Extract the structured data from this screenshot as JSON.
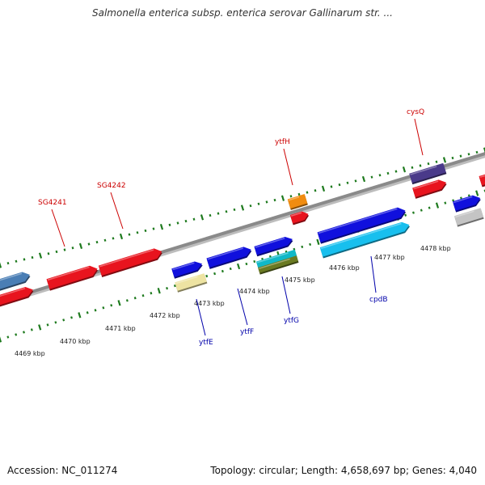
{
  "title": "Salmonella enterica subsp. enterica serovar Gallinarum str. ...",
  "footer": {
    "accession": "Accession: NC_011274",
    "summary": "Topology: circular; Length: 4,658,697 bp; Genes: 4,040"
  },
  "colors": {
    "backbone": "#8a8a8a",
    "tick": "#1e7a1e",
    "label_red": "#cc0000",
    "label_blue": "#0000aa"
  },
  "scale_ticks": [
    {
      "id": "4469",
      "label": "4469 kbp"
    },
    {
      "id": "4470",
      "label": "4470 kbp"
    },
    {
      "id": "4471",
      "label": "4471 kbp"
    },
    {
      "id": "4472",
      "label": "4472 kbp"
    },
    {
      "id": "4473",
      "label": "4473 kbp"
    },
    {
      "id": "4474",
      "label": "4474 kbp"
    },
    {
      "id": "4475",
      "label": "4475 kbp"
    },
    {
      "id": "4476",
      "label": "4476 kbp"
    },
    {
      "id": "4477",
      "label": "4477 kbp"
    },
    {
      "id": "4478",
      "label": "4478 kbp"
    }
  ],
  "gene_labels": [
    {
      "id": "SG4241",
      "text": "SG4241",
      "color": "#cc0000"
    },
    {
      "id": "SG4242",
      "text": "SG4242",
      "color": "#cc0000"
    },
    {
      "id": "ytfH",
      "text": "ytfH",
      "color": "#cc0000"
    },
    {
      "id": "cysQ",
      "text": "cysQ",
      "color": "#cc0000"
    },
    {
      "id": "ytfE",
      "text": "ytfE",
      "color": "#0000aa"
    },
    {
      "id": "ytfF",
      "text": "ytfF",
      "color": "#0000aa"
    },
    {
      "id": "ytfG",
      "text": "ytfG",
      "color": "#0000aa"
    },
    {
      "id": "cpdB",
      "text": "cpdB",
      "color": "#0000aa"
    }
  ],
  "features": [
    {
      "id": "f01",
      "color": "#4a7eb5"
    },
    {
      "id": "f02",
      "color": "#e8141e"
    },
    {
      "id": "f03",
      "color": "#e8141e"
    },
    {
      "id": "f04",
      "color": "#e8141e"
    },
    {
      "id": "f05",
      "color": "#1010dd"
    },
    {
      "id": "f06",
      "color": "#ede3a2"
    },
    {
      "id": "f07",
      "color": "#1010dd"
    },
    {
      "id": "f08",
      "color": "#1010dd"
    },
    {
      "id": "f09",
      "color": "#10b8c8"
    },
    {
      "id": "f10",
      "color": "#6a7a22"
    },
    {
      "id": "f11",
      "color": "#f08c10"
    },
    {
      "id": "f12",
      "color": "#e8141e"
    },
    {
      "id": "f13",
      "color": "#1010dd"
    },
    {
      "id": "f14",
      "color": "#18bfee"
    },
    {
      "id": "f15",
      "color": "#4a3a8a"
    },
    {
      "id": "f16",
      "color": "#e8141e"
    },
    {
      "id": "f17",
      "color": "#1010dd"
    },
    {
      "id": "f18",
      "color": "#c4c4c4"
    },
    {
      "id": "f19",
      "color": "#e8141e"
    }
  ]
}
